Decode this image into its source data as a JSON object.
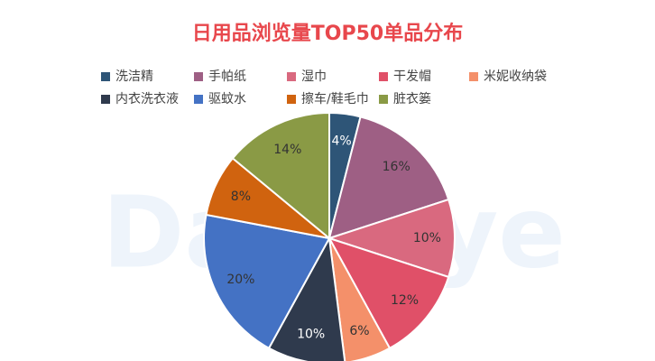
{
  "chart_data": {
    "type": "pie",
    "title": "日用品浏览量TOP50单品分布",
    "watermark": "DataEye",
    "categories": [
      "洗洁精",
      "手帕纸",
      "湿巾",
      "干发帽",
      "米妮收纳袋",
      "内衣洗衣液",
      "驱蚊水",
      "擦车/鞋毛巾",
      "脏衣篓"
    ],
    "values": [
      4,
      16,
      10,
      12,
      6,
      10,
      20,
      8,
      14
    ],
    "value_labels": [
      "4%",
      "16%",
      "10%",
      "12%",
      "6%",
      "10%",
      "20%",
      "8%",
      "14%"
    ],
    "colors": [
      "#2e5577",
      "#9e5f84",
      "#d9697f",
      "#e05068",
      "#f4906a",
      "#2f3a4d",
      "#4472c4",
      "#d0630f",
      "#8a9a45"
    ],
    "legend": "top"
  }
}
